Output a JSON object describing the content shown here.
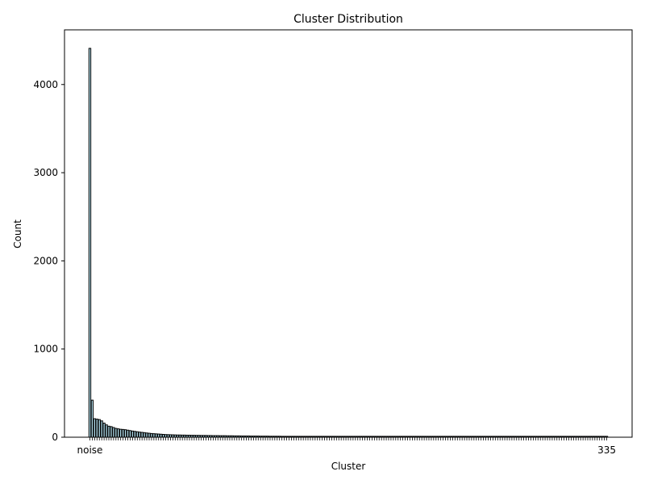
{
  "chart_data": {
    "type": "bar",
    "title": "Cluster Distribution",
    "xlabel": "Cluster",
    "ylabel": "Count",
    "ylim": [
      0,
      4620
    ],
    "yticks": [
      0,
      1000,
      2000,
      3000,
      4000
    ],
    "bar_color": "#add8e6",
    "edge_color": "#000000",
    "first_category": "noise",
    "last_category": "335",
    "grid": false,
    "legend": "none",
    "values": [
      4410,
      420,
      210,
      205,
      200,
      185,
      160,
      140,
      125,
      120,
      110,
      100,
      95,
      90,
      88,
      85,
      80,
      75,
      70,
      66,
      62,
      58,
      55,
      52,
      48,
      45,
      42,
      40,
      38,
      36,
      34,
      32,
      30,
      29,
      28,
      27,
      26,
      25,
      25,
      24,
      24,
      23,
      23,
      22,
      22,
      21,
      21,
      20,
      20,
      20,
      19,
      19,
      18,
      18,
      18,
      17,
      17,
      17,
      16,
      16,
      16,
      15,
      15,
      15,
      14,
      14,
      14,
      14,
      13,
      13,
      13,
      13,
      12,
      12,
      12,
      12,
      11,
      11,
      11,
      11,
      11,
      10,
      10,
      10,
      10,
      10,
      10,
      10,
      10,
      10,
      10,
      10,
      10,
      10,
      10,
      10,
      10,
      10,
      10,
      10,
      10,
      10,
      10,
      10,
      10,
      10,
      10,
      10,
      10,
      10,
      10,
      10,
      10,
      10,
      10,
      10,
      10,
      10,
      10,
      10,
      10,
      10,
      10,
      10,
      10,
      10,
      10,
      10,
      10,
      10,
      10,
      10,
      10,
      10,
      10,
      10,
      10,
      10,
      10,
      10,
      10,
      10,
      10,
      10,
      10,
      10,
      10,
      10,
      10,
      10,
      10,
      10,
      10,
      10,
      10,
      10,
      10,
      10,
      10,
      10,
      10,
      10,
      10,
      10,
      10,
      10,
      10,
      10,
      10,
      10,
      10,
      10,
      10,
      10,
      10,
      10,
      10,
      10,
      10,
      10,
      10,
      10,
      10,
      10,
      10,
      10,
      10,
      10,
      10,
      10,
      10,
      10,
      10,
      10,
      10,
      10,
      10,
      10,
      10,
      10,
      10,
      10,
      10,
      10,
      10,
      10,
      10,
      10,
      10,
      10,
      10,
      10,
      10,
      10,
      10,
      10,
      10,
      10,
      10
    ]
  }
}
